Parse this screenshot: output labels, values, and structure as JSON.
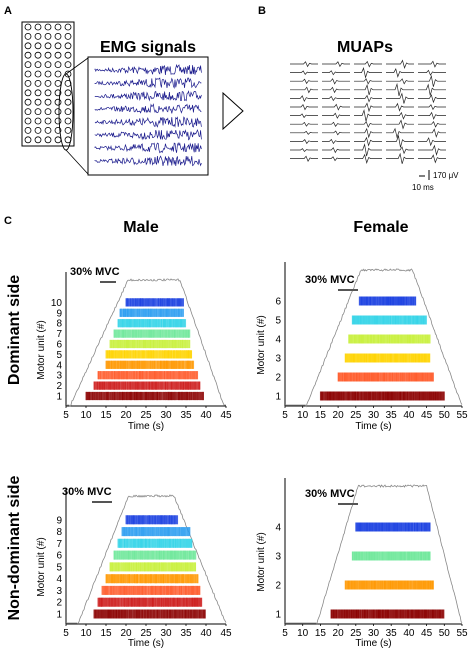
{
  "panel_labels": {
    "a": "A",
    "b": "B",
    "c": "C"
  },
  "panel_a": {
    "title": "EMG signals",
    "electrode_grid": {
      "columns": 5,
      "rows": 13
    },
    "traces": 8
  },
  "panel_b": {
    "title": "MUAPs",
    "rows": 12,
    "columns": 5,
    "scale_time": "10 ms",
    "scale_amp": "170 μV"
  },
  "panel_c": {
    "col_titles": [
      "Male",
      "Female"
    ],
    "row_titles": [
      "Dominant side",
      "Non-dominant side"
    ],
    "mvc_label": "30% MVC",
    "xlabel": "Time (s)",
    "ylabel": "Motor unit (#)"
  },
  "colors": {
    "trace": "#1a1a8c",
    "force": "#888888",
    "mu_palette": [
      "#8b0000",
      "#cc1a1a",
      "#ff5a2a",
      "#ff9800",
      "#ffd400",
      "#c8f03c",
      "#6ee89a",
      "#34d4e8",
      "#2a9cf0",
      "#1a40e0"
    ]
  },
  "chart_data": [
    {
      "type": "raster",
      "panel": "male-dominant",
      "xlim": [
        5,
        45
      ],
      "xticks": [
        5,
        10,
        15,
        20,
        25,
        30,
        35,
        40,
        45
      ],
      "yticks": [
        1,
        2,
        3,
        4,
        5,
        6,
        7,
        8,
        9,
        10
      ],
      "units": [
        {
          "mu": 1,
          "start": 10,
          "end": 39.5
        },
        {
          "mu": 2,
          "start": 12,
          "end": 38.5
        },
        {
          "mu": 3,
          "start": 13,
          "end": 38
        },
        {
          "mu": 4,
          "start": 15,
          "end": 37
        },
        {
          "mu": 5,
          "start": 15,
          "end": 36.5
        },
        {
          "mu": 6,
          "start": 16,
          "end": 36
        },
        {
          "mu": 7,
          "start": 17,
          "end": 36
        },
        {
          "mu": 8,
          "start": 18,
          "end": 35
        },
        {
          "mu": 9,
          "start": 18.5,
          "end": 34.5
        },
        {
          "mu": 10,
          "start": 20,
          "end": 34.5
        }
      ]
    },
    {
      "type": "raster",
      "panel": "female-dominant",
      "xlim": [
        5,
        55
      ],
      "xticks": [
        5,
        10,
        15,
        20,
        25,
        30,
        35,
        40,
        45,
        50,
        55
      ],
      "yticks": [
        1,
        2,
        3,
        4,
        5,
        6
      ],
      "units": [
        {
          "mu": 1,
          "start": 15,
          "end": 50
        },
        {
          "mu": 2,
          "start": 20,
          "end": 47
        },
        {
          "mu": 3,
          "start": 22,
          "end": 46
        },
        {
          "mu": 4,
          "start": 23,
          "end": 46
        },
        {
          "mu": 5,
          "start": 24,
          "end": 45
        },
        {
          "mu": 6,
          "start": 26,
          "end": 42
        }
      ]
    },
    {
      "type": "raster",
      "panel": "male-nondominant",
      "xlim": [
        5,
        45
      ],
      "xticks": [
        5,
        10,
        15,
        20,
        25,
        30,
        35,
        40,
        45
      ],
      "yticks": [
        1,
        2,
        3,
        4,
        5,
        6,
        7,
        8,
        9
      ],
      "units": [
        {
          "mu": 1,
          "start": 12,
          "end": 40
        },
        {
          "mu": 2,
          "start": 13,
          "end": 39
        },
        {
          "mu": 3,
          "start": 14,
          "end": 38.5
        },
        {
          "mu": 4,
          "start": 15,
          "end": 38
        },
        {
          "mu": 5,
          "start": 16,
          "end": 37.5
        },
        {
          "mu": 6,
          "start": 17,
          "end": 37.5
        },
        {
          "mu": 7,
          "start": 18,
          "end": 36.5
        },
        {
          "mu": 8,
          "start": 19,
          "end": 36
        },
        {
          "mu": 9,
          "start": 20,
          "end": 33
        }
      ]
    },
    {
      "type": "raster",
      "panel": "female-nondominant",
      "xlim": [
        5,
        55
      ],
      "xticks": [
        5,
        10,
        15,
        20,
        25,
        30,
        35,
        40,
        45,
        50,
        55
      ],
      "yticks": [
        1,
        2,
        3,
        4
      ],
      "units": [
        {
          "mu": 1,
          "start": 18,
          "end": 50
        },
        {
          "mu": 2,
          "start": 22,
          "end": 47
        },
        {
          "mu": 3,
          "start": 24,
          "end": 46
        },
        {
          "mu": 4,
          "start": 25,
          "end": 46
        }
      ]
    }
  ]
}
